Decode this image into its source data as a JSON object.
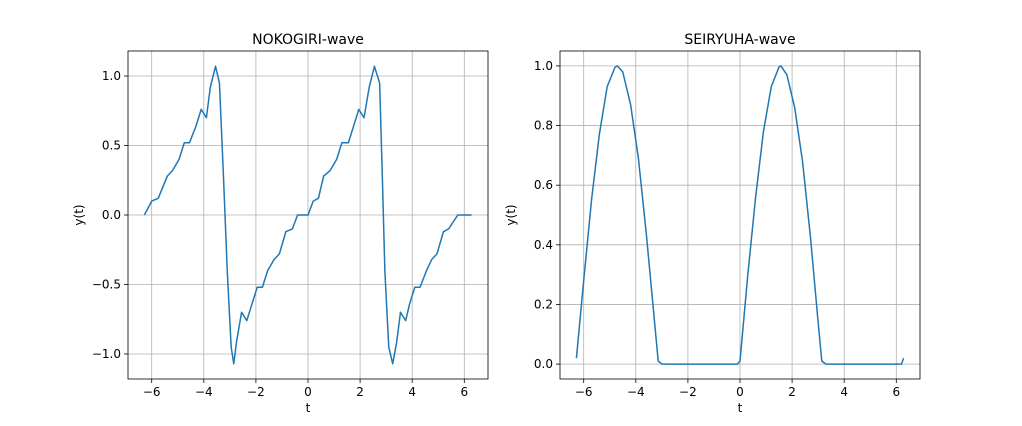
{
  "chart_data": [
    {
      "type": "line",
      "title": "NOKOGIRI-wave",
      "xlabel": "t",
      "ylabel": "y(t)",
      "xlim": [
        -6.91,
        6.91
      ],
      "ylim": [
        -1.18,
        1.18
      ],
      "x_ticks": [
        -6,
        -4,
        -2,
        0,
        2,
        4,
        6
      ],
      "x_tick_labels": [
        "−6",
        "−4",
        "−2",
        "0",
        "2",
        "4",
        "6"
      ],
      "y_ticks": [
        -1.0,
        -0.5,
        0.0,
        0.5,
        1.0
      ],
      "y_tick_labels": [
        "−1.0",
        "−0.5",
        "0.0",
        "0.5",
        "1.0"
      ],
      "grid": true,
      "line_color": "#1f77b4",
      "series": [
        {
          "formula": "sawtooth Fourier series, 7 harmonics",
          "x": [
            -6.28,
            -6.0,
            -5.75,
            -5.4,
            -5.2,
            -4.95,
            -4.75,
            -4.55,
            -4.3,
            -4.1,
            -3.9,
            -3.75,
            -3.55,
            -3.4,
            -3.25,
            -3.1,
            -2.95,
            -2.85,
            -2.75,
            -2.55,
            -2.35,
            -2.15,
            -1.95,
            -1.75,
            -1.55,
            -1.3,
            -1.1,
            -0.85,
            -0.6,
            -0.4,
            -0.2,
            0.0,
            0.2,
            0.4,
            0.6,
            0.85,
            1.1,
            1.3,
            1.55,
            1.75,
            1.95,
            2.15,
            2.35,
            2.55,
            2.75,
            2.85,
            2.95,
            3.1,
            3.25,
            3.4,
            3.55,
            3.75,
            3.9,
            4.1,
            4.3,
            4.55,
            4.75,
            4.95,
            5.2,
            5.4,
            5.75,
            6.0,
            6.28
          ],
          "y": [
            0.0,
            0.1,
            0.12,
            0.28,
            0.32,
            0.4,
            0.52,
            0.52,
            0.64,
            0.76,
            0.7,
            0.92,
            1.07,
            0.95,
            0.3,
            -0.4,
            -0.95,
            -1.07,
            -0.92,
            -0.7,
            -0.76,
            -0.64,
            -0.52,
            -0.52,
            -0.4,
            -0.32,
            -0.28,
            -0.12,
            -0.1,
            0.0,
            0.0,
            0.0,
            0.1,
            0.12,
            0.28,
            0.32,
            0.4,
            0.52,
            0.52,
            0.64,
            0.76,
            0.7,
            0.92,
            1.07,
            0.95,
            0.3,
            -0.4,
            -0.95,
            -1.07,
            -0.92,
            -0.7,
            -0.76,
            -0.64,
            -0.52,
            -0.52,
            -0.4,
            -0.32,
            -0.28,
            -0.12,
            -0.1,
            0.0,
            0.0,
            0.0
          ]
        }
      ]
    },
    {
      "type": "line",
      "title": "SEIRYUHA-wave",
      "xlabel": "t",
      "ylabel": "y(t)",
      "xlim": [
        -6.91,
        6.91
      ],
      "ylim": [
        -0.05,
        1.05
      ],
      "x_ticks": [
        -6,
        -4,
        -2,
        0,
        2,
        4,
        6
      ],
      "x_tick_labels": [
        "−6",
        "−4",
        "−2",
        "0",
        "2",
        "4",
        "6"
      ],
      "y_ticks": [
        0.0,
        0.2,
        0.4,
        0.6,
        0.8,
        1.0
      ],
      "y_tick_labels": [
        "0.0",
        "0.2",
        "0.4",
        "0.6",
        "0.8",
        "1.0"
      ],
      "grid": true,
      "line_color": "#1f77b4",
      "series": [
        {
          "formula": "half-wave rectified sine, Fourier series",
          "x": [
            -6.28,
            -6.0,
            -5.7,
            -5.4,
            -5.1,
            -4.8,
            -4.71,
            -4.5,
            -4.2,
            -3.9,
            -3.6,
            -3.3,
            -3.14,
            -3.0,
            -2.5,
            -2.0,
            -1.5,
            -1.0,
            -0.5,
            -0.1,
            0.0,
            0.3,
            0.6,
            0.9,
            1.2,
            1.5,
            1.57,
            1.8,
            2.1,
            2.4,
            2.7,
            3.0,
            3.14,
            3.3,
            3.8,
            4.3,
            4.8,
            5.3,
            5.8,
            6.2,
            6.28
          ],
          "y": [
            0.02,
            0.28,
            0.55,
            0.77,
            0.93,
            0.995,
            1.0,
            0.98,
            0.87,
            0.69,
            0.44,
            0.16,
            0.01,
            0.0,
            0.0,
            0.0,
            0.0,
            0.0,
            0.0,
            0.0,
            0.01,
            0.3,
            0.56,
            0.78,
            0.93,
            0.997,
            1.0,
            0.97,
            0.86,
            0.68,
            0.43,
            0.14,
            0.01,
            0.0,
            0.0,
            0.0,
            0.0,
            0.0,
            0.0,
            0.0,
            0.02
          ]
        }
      ]
    }
  ]
}
